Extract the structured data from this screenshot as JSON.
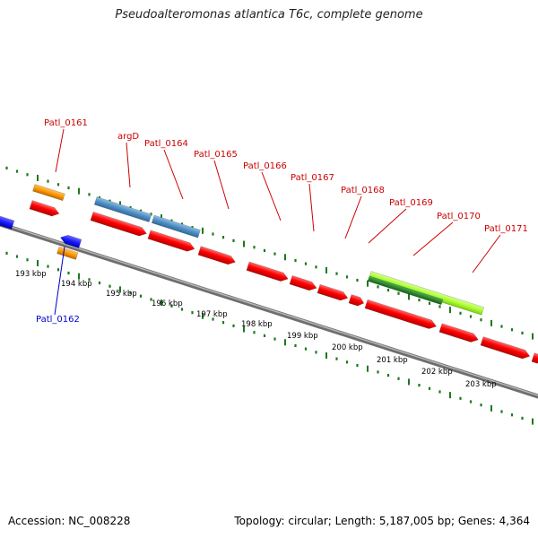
{
  "title": "Pseudoalteromonas atlantica T6c, complete genome",
  "footer": {
    "accession": "Accession: NC_008228",
    "summary": "Topology: circular; Length: 5,187,005 bp; Genes: 4,364"
  },
  "colors": {
    "forward_gene": "#ff0000",
    "reverse_gene": "#1a1aff",
    "rna_gene": "#ff9900",
    "blue_region": "#4f8fc4",
    "green_light": "#aaff33",
    "green_dark": "#2e8b2e",
    "tick": "#1a7a1a",
    "backbone": "#888888",
    "label_red": "#cc0000",
    "label_blue": "#0000cc"
  },
  "scale_labels": [
    "193 kbp",
    "194 kbp",
    "195 kbp",
    "196 kbp",
    "197 kbp",
    "198 kbp",
    "199 kbp",
    "200 kbp",
    "201 kbp",
    "202 kbp",
    "203 kbp"
  ],
  "gene_labels": [
    {
      "text": "Patl_0161",
      "color": "red"
    },
    {
      "text": "argD",
      "color": "red"
    },
    {
      "text": "Patl_0164",
      "color": "red"
    },
    {
      "text": "Patl_0165",
      "color": "red"
    },
    {
      "text": "Patl_0166",
      "color": "red"
    },
    {
      "text": "Patl_0167",
      "color": "red"
    },
    {
      "text": "Patl_0168",
      "color": "red"
    },
    {
      "text": "Patl_0169",
      "color": "red"
    },
    {
      "text": "Patl_0170",
      "color": "red"
    },
    {
      "text": "Patl_0171",
      "color": "red"
    },
    {
      "text": "Patl_0162",
      "color": "blue"
    }
  ]
}
